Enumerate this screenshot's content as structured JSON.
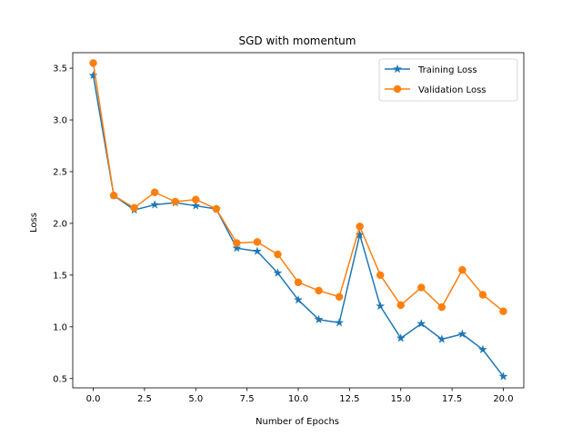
{
  "chart_data": {
    "type": "line",
    "title": "SGD with momentum",
    "xlabel": "Number of Epochs",
    "ylabel": "Loss",
    "xlim": [
      -1.0,
      21.0
    ],
    "ylim": [
      0.41,
      3.65
    ],
    "xticks": [
      0.0,
      2.5,
      5.0,
      7.5,
      10.0,
      12.5,
      15.0,
      17.5,
      20.0
    ],
    "xtick_labels": [
      "0.0",
      "2.5",
      "5.0",
      "7.5",
      "10.0",
      "12.5",
      "15.0",
      "17.5",
      "20.0"
    ],
    "yticks": [
      0.5,
      1.0,
      1.5,
      2.0,
      2.5,
      3.0,
      3.5
    ],
    "ytick_labels": [
      "0.5",
      "1.0",
      "1.5",
      "2.0",
      "2.5",
      "3.0",
      "3.5"
    ],
    "grid": false,
    "legend_position": "top-right",
    "x": [
      0,
      1,
      2,
      3,
      4,
      5,
      6,
      7,
      8,
      9,
      10,
      11,
      12,
      13,
      14,
      15,
      16,
      17,
      18,
      19,
      20
    ],
    "series": [
      {
        "name": "Training Loss",
        "color": "#1f77b4",
        "marker": "star",
        "values": [
          3.43,
          2.27,
          2.13,
          2.18,
          2.2,
          2.17,
          2.14,
          1.76,
          1.73,
          1.52,
          1.26,
          1.07,
          1.04,
          1.89,
          1.2,
          0.89,
          1.03,
          0.88,
          0.93,
          0.78,
          0.52
        ]
      },
      {
        "name": "Validation Loss",
        "color": "#ff7f0e",
        "marker": "circle",
        "values": [
          3.55,
          2.27,
          2.15,
          2.3,
          2.21,
          2.23,
          2.14,
          1.81,
          1.82,
          1.7,
          1.43,
          1.35,
          1.29,
          1.97,
          1.5,
          1.21,
          1.38,
          1.19,
          1.55,
          1.31,
          1.15
        ]
      }
    ]
  }
}
